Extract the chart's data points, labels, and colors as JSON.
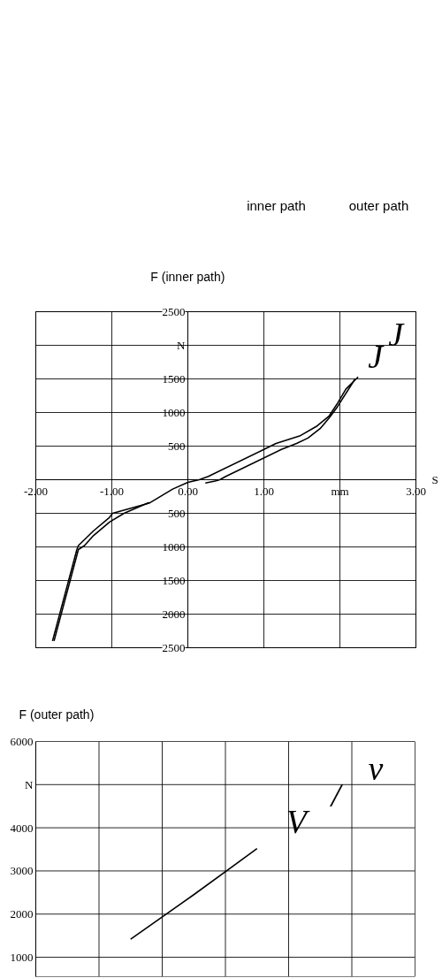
{
  "chart_data": [
    {
      "type": "other",
      "annotations": [
        "inner path",
        "outer path"
      ]
    },
    {
      "type": "line",
      "ylabel": "F (inner path)",
      "xlabel": "S",
      "xlim": [
        -2,
        3
      ],
      "ylim": [
        -2500,
        2500
      ],
      "xticks": [
        {
          "value": -2,
          "label": "-2.00"
        },
        {
          "value": -1,
          "label": "-1.00"
        },
        {
          "value": 0,
          "label": "0.00"
        },
        {
          "value": 1,
          "label": "1.00"
        },
        {
          "value": 2,
          "label": "mm"
        },
        {
          "value": 3,
          "label": "3.00"
        }
      ],
      "yticks": [
        {
          "value": -2500,
          "label": "2500"
        },
        {
          "value": -2000,
          "label": "2000"
        },
        {
          "value": -1500,
          "label": "1500"
        },
        {
          "value": -1000,
          "label": "1000"
        },
        {
          "value": -500,
          "label": "500"
        },
        500,
        1000,
        1500,
        {
          "value": 2000,
          "label": "N"
        },
        2500
      ],
      "grid": true,
      "series": [
        {
          "color": "#000000",
          "x": [
            -1.78,
            -1.46,
            -1.44,
            -1.24,
            -1.03,
            -0.99,
            -0.51,
            -0.2,
            0.0,
            0.15,
            0.27,
            1.0,
            1.16,
            1.47,
            1.7,
            1.86,
            1.97,
            2.08,
            2.24
          ],
          "values": [
            -2400,
            -1040,
            -980,
            -760,
            -560,
            -500,
            -350,
            -140,
            -40,
            0,
            50,
            450,
            540,
            650,
            800,
            950,
            1140,
            1350,
            1530
          ]
        },
        {
          "color": "#000000",
          "x": [
            -1.76,
            -1.44,
            -1.36,
            -1.24,
            -1.03,
            -0.84,
            -0.51,
            -0.2,
            0.23,
            0.36,
            0.42,
            0.5,
            1.23,
            1.43,
            1.58,
            1.74,
            1.86,
            1.97,
            2.2
          ],
          "values": [
            -2400,
            -1040,
            -980,
            -830,
            -630,
            -500,
            -340,
            null,
            -50,
            -20,
            0,
            50,
            450,
            540,
            620,
            760,
            920,
            1090,
            1500
          ]
        }
      ],
      "annotations": [
        "J",
        "J"
      ]
    },
    {
      "type": "line",
      "ylabel": "F (outer path)",
      "categories": [
        null,
        null,
        null,
        null,
        null,
        null
      ],
      "ylim": [
        550,
        6000
      ],
      "yticks": [
        1000,
        2000,
        3000,
        4000,
        {
          "value": 5000,
          "label": "N"
        },
        6000
      ],
      "tick_labels": "y",
      "grid": true,
      "series": [
        {
          "color": "#000000",
          "values": [
            null,
            1420,
            2450,
            3520,
            null,
            null
          ]
        }
      ],
      "annotations": [
        "V",
        "/",
        "v"
      ]
    }
  ]
}
